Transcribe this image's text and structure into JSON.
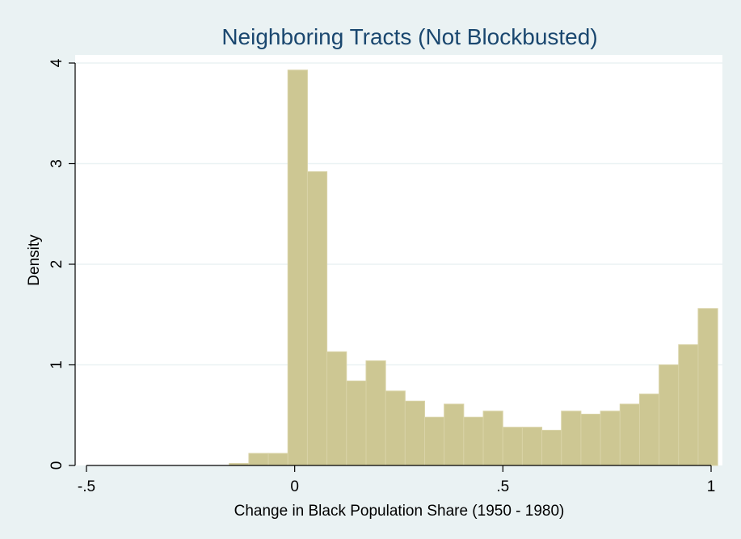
{
  "chart_data": {
    "type": "bar",
    "title": "Neighboring Tracts (Not Blockbusted)",
    "xlabel": "Change in Black Population Share (1950 - 1980)",
    "ylabel": "Density",
    "xlim": [
      -0.5,
      1
    ],
    "ylim": [
      0,
      4
    ],
    "xticks": [
      {
        "value": -0.5,
        "label": "-.5"
      },
      {
        "value": 0,
        "label": "0"
      },
      {
        "value": 0.5,
        "label": ".5"
      },
      {
        "value": 1,
        "label": "1"
      }
    ],
    "yticks": [
      {
        "value": 0,
        "label": "0"
      },
      {
        "value": 1,
        "label": "1"
      },
      {
        "value": 2,
        "label": "2"
      },
      {
        "value": 3,
        "label": "3"
      },
      {
        "value": 4,
        "label": "4"
      }
    ],
    "grid": true,
    "bar_color": "#cdc793",
    "bar_edge_color": "#d9d3a7",
    "plot_background": "#ffffff",
    "page_background": "#eaf2f3",
    "title_color": "#1a476f",
    "bins": [
      {
        "x0": -0.1571,
        "x1": -0.1101,
        "density": 0.02
      },
      {
        "x0": -0.1101,
        "x1": -0.0632,
        "density": 0.12
      },
      {
        "x0": -0.0632,
        "x1": -0.0163,
        "density": 0.12
      },
      {
        "x0": -0.0163,
        "x1": 0.0306,
        "density": 3.93
      },
      {
        "x0": 0.0306,
        "x1": 0.0775,
        "density": 2.92
      },
      {
        "x0": 0.0775,
        "x1": 0.1244,
        "density": 1.13
      },
      {
        "x0": 0.1244,
        "x1": 0.1714,
        "density": 0.84
      },
      {
        "x0": 0.1714,
        "x1": 0.2183,
        "density": 1.04
      },
      {
        "x0": 0.2183,
        "x1": 0.2652,
        "density": 0.74
      },
      {
        "x0": 0.2652,
        "x1": 0.3121,
        "density": 0.64
      },
      {
        "x0": 0.3121,
        "x1": 0.359,
        "density": 0.48
      },
      {
        "x0": 0.359,
        "x1": 0.4059,
        "density": 0.61
      },
      {
        "x0": 0.4059,
        "x1": 0.4529,
        "density": 0.48
      },
      {
        "x0": 0.4529,
        "x1": 0.4998,
        "density": 0.54
      },
      {
        "x0": 0.4998,
        "x1": 0.5467,
        "density": 0.38
      },
      {
        "x0": 0.5467,
        "x1": 0.5936,
        "density": 0.38
      },
      {
        "x0": 0.5936,
        "x1": 0.6405,
        "density": 0.35
      },
      {
        "x0": 0.6405,
        "x1": 0.6874,
        "density": 0.54
      },
      {
        "x0": 0.6874,
        "x1": 0.7344,
        "density": 0.51
      },
      {
        "x0": 0.7344,
        "x1": 0.7813,
        "density": 0.54
      },
      {
        "x0": 0.7813,
        "x1": 0.8282,
        "density": 0.61
      },
      {
        "x0": 0.8282,
        "x1": 0.8751,
        "density": 0.71
      },
      {
        "x0": 0.8751,
        "x1": 0.922,
        "density": 1.0
      },
      {
        "x0": 0.922,
        "x1": 0.9689,
        "density": 1.2
      },
      {
        "x0": 0.9689,
        "x1": 1.0158,
        "density": 1.56
      }
    ]
  }
}
